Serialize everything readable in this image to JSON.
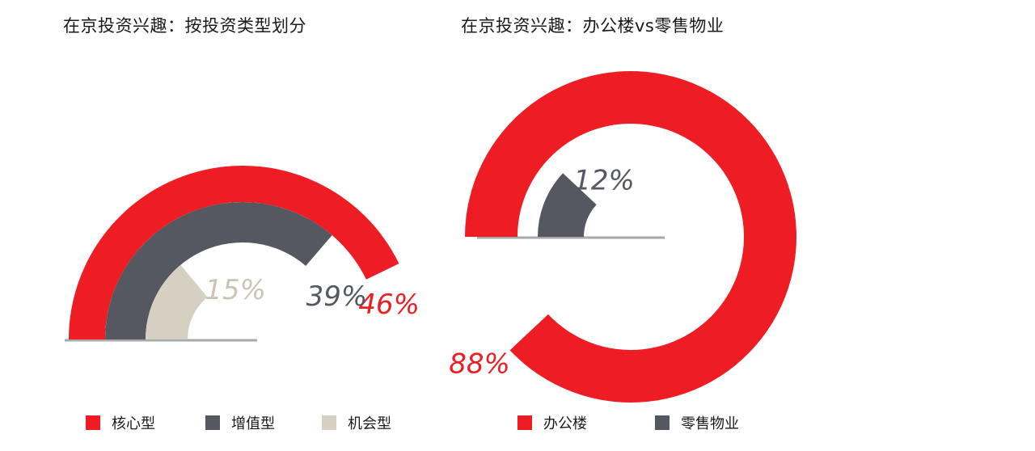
{
  "colors": {
    "red": "#EE1D24",
    "gray": "#555861",
    "beige": "#D5D0C2",
    "baseline": "#A7A9AC"
  },
  "chart_data": [
    {
      "type": "radial-bar",
      "title": "在京投资兴趣：按投资类型划分",
      "series": [
        {
          "name": "核心型",
          "value": 46,
          "label": "46%",
          "color": "#EE1D24"
        },
        {
          "name": "增值型",
          "value": 39,
          "label": "39%",
          "color": "#555861"
        },
        {
          "name": "机会型",
          "value": 15,
          "label": "15%",
          "color": "#D5D0C2"
        }
      ],
      "legend": "bottom"
    },
    {
      "type": "radial-bar",
      "title": "在京投资兴趣：办公楼vs零售物业",
      "series": [
        {
          "name": "办公楼",
          "value": 88,
          "label": "88%",
          "color": "#EE1D24"
        },
        {
          "name": "零售物业",
          "value": 12,
          "label": "12%",
          "color": "#555861"
        }
      ],
      "legend": "bottom"
    }
  ]
}
